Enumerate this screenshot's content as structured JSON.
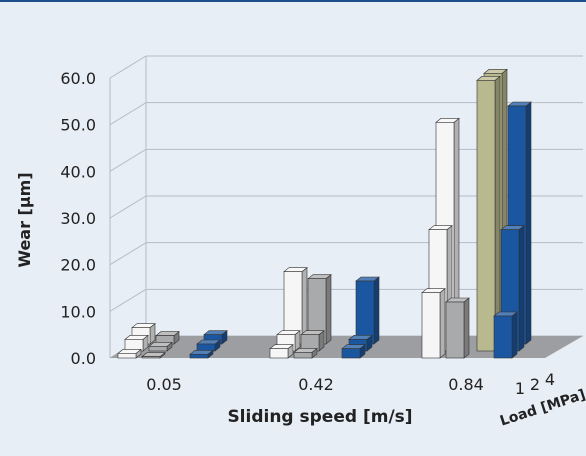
{
  "colors": {
    "background": "#e8eef6",
    "top_rule": "#1f4e8c",
    "grid": "#b5bcc6",
    "floor": "#9c9ea2",
    "text": "#222222",
    "white": "#f6f6f6",
    "gray": "#a9aaab",
    "olive": "#b9b98f",
    "blue": "#1b56a0"
  },
  "chart_data": {
    "type": "bar",
    "subtype": "3d-grouped-bar",
    "title": "",
    "xlabel": "Sliding speed [m/s]",
    "ylabel": "Wear [µm]",
    "zlabel": "Load [MPa]",
    "categories": [
      "0.05",
      "0.42",
      "0.84"
    ],
    "depth_categories": [
      "1",
      "2",
      "4"
    ],
    "ylim": [
      0,
      60
    ],
    "yticks": [
      "0.0",
      "10.0",
      "20.0",
      "30.0",
      "40.0",
      "50.0",
      "60.0"
    ],
    "grid": true,
    "series": [
      {
        "color": "white",
        "values": [
          [
            1.0,
            2.5,
            3.5
          ],
          [
            2.0,
            3.5,
            15.5
          ],
          [
            14.0,
            26.0,
            47.5
          ]
        ]
      },
      {
        "color": "gray",
        "values": [
          [
            0.3,
            1.0,
            1.8
          ],
          [
            1.2,
            3.5,
            14.0
          ],
          [
            12.0,
            0,
            0
          ]
        ]
      },
      {
        "color": "olive",
        "values": [
          [
            0,
            0,
            0
          ],
          [
            0,
            0,
            0
          ],
          [
            0,
            58.0,
            58.0
          ]
        ]
      },
      {
        "color": "blue",
        "values": [
          [
            0.8,
            1.5,
            2.0
          ],
          [
            2.0,
            2.5,
            13.5
          ],
          [
            9.0,
            26.0,
            51.0
          ]
        ]
      }
    ]
  }
}
